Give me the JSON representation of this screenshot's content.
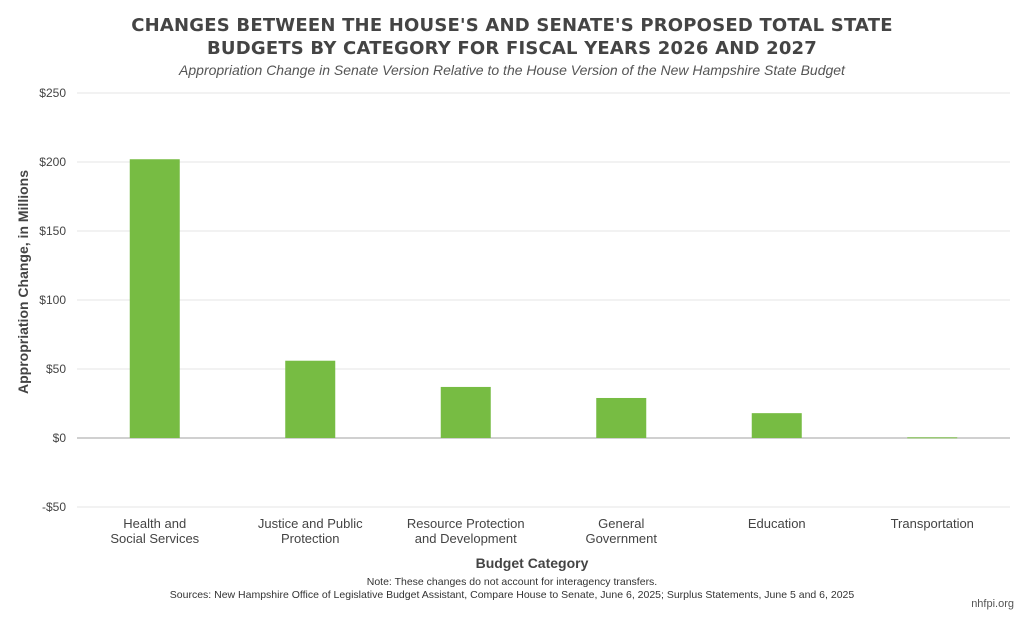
{
  "title_lines": [
    "CHANGES BETWEEN THE HOUSE'S AND SENATE'S PROPOSED TOTAL STATE",
    "BUDGETS BY CATEGORY FOR FISCAL YEARS 2026 AND 2027"
  ],
  "subtitle": "Appropriation Change in Senate Version Relative to the House Version of the New Hampshire State Budget",
  "note": "Note: These changes do not account for interagency transfers.",
  "source": "Sources: New Hampshire Office of Legislative Budget Assistant, Compare House to Senate, June 6, 2025; Surplus Statements, June 5 and 6, 2025",
  "brand": "nhfpi.org",
  "chart_data": {
    "type": "bar",
    "categories": [
      [
        "Health and",
        "Social Services"
      ],
      [
        "Justice and Public",
        "Protection"
      ],
      [
        "Resource Protection",
        "and Development"
      ],
      [
        "General",
        "Government"
      ],
      [
        "Education"
      ],
      [
        "Transportation"
      ]
    ],
    "values": [
      202,
      56,
      37,
      29,
      18,
      0.5
    ],
    "xlabel": "Budget Category",
    "ylabel": "Appropriation Change, in Millions",
    "ylim": [
      -50,
      250
    ],
    "yticks": [
      -50,
      0,
      50,
      100,
      150,
      200,
      250
    ],
    "ytick_labels": [
      "-$50",
      "$0",
      "$50",
      "$100",
      "$150",
      "$200",
      "$250"
    ],
    "bar_color": "#77bc43",
    "grid": true,
    "legend": "none"
  }
}
